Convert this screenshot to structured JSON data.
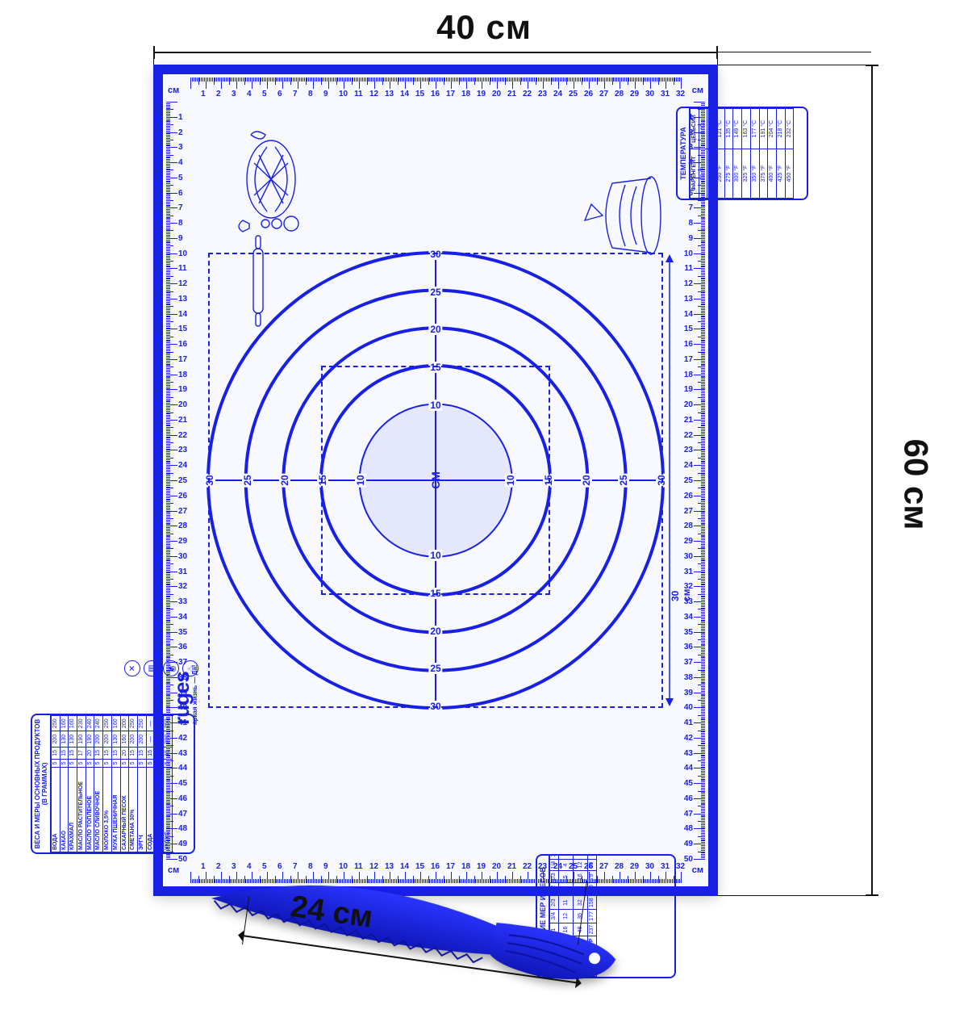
{
  "colors": {
    "blue": "#1920e6",
    "dark": "#111111",
    "bg": "#ffffff",
    "mat_bg": "#f7f9ff"
  },
  "dimensions": {
    "width_label": "40 см",
    "height_label": "60 см",
    "knife_label": "24 см"
  },
  "mat": {
    "ruler_unit": "см",
    "ruler_h_max": 32,
    "ruler_v_max": 50,
    "center_unit": "СМ",
    "ring_diameters_cm": [
      10,
      15,
      20,
      25,
      30
    ],
    "dashed_boxes_cm": [
      15,
      30
    ],
    "dim_30_label": "30 см"
  },
  "logo": {
    "brand": "ruges",
    "reg": "®",
    "tagline": "яркая жизнь — Да!"
  },
  "temperature_box": {
    "title": "ТЕМПЕРАТУРА",
    "headers": [
      "ФАРЕНГЕЙТ",
      "ЦЕЛЬСИЙ"
    ],
    "rows": [
      [
        "32 °F",
        "0 °C"
      ],
      [
        "210 °F",
        "100 °C"
      ],
      [
        "250 °F",
        "121 °C"
      ],
      [
        "275 °F",
        "135 °C"
      ],
      [
        "300 °F",
        "149 °C"
      ],
      [
        "325 °F",
        "163 °C"
      ],
      [
        "350 °F",
        "177 °C"
      ],
      [
        "375 °F",
        "191 °C"
      ],
      [
        "400 °F",
        "204 °C"
      ],
      [
        "425 °F",
        "218 °C"
      ],
      [
        "450 °F",
        "232 °C"
      ]
    ]
  },
  "measures_box": {
    "title": "СРАВНЕНИЕ МЕР И ВЕСОВ",
    "rows": [
      {
        "name": "ЧАШКА",
        "vals": [
          "1",
          "3/4",
          "2/3",
          "1/2",
          "1/3",
          "1/4",
          "1/8",
          "1/16"
        ]
      },
      {
        "name": "СТОЛОВАЯ ЛОЖКА",
        "vals": [
          "16",
          "12",
          "11",
          "8",
          "5",
          "4",
          "2",
          "1"
        ]
      },
      {
        "name": "ЧАЙНАЯ ЛОЖКА",
        "vals": [
          "48",
          "36",
          "32",
          "24",
          "16",
          "12",
          "6",
          "3"
        ]
      },
      {
        "name": "МИЛЛИЛИТР",
        "vals": [
          "237",
          "177",
          "158",
          "118",
          "79",
          "59",
          "30",
          "15"
        ]
      }
    ]
  },
  "weights_box": {
    "title": "ВЕСА И МЕРЫ ОСНОВНЫХ ПРОДУКТОВ (В ГРАММАХ)",
    "rows": [
      {
        "name": "ВОДА",
        "vals": [
          "5",
          "15",
          "200",
          "250"
        ]
      },
      {
        "name": "КАКАО",
        "vals": [
          "5",
          "15",
          "130",
          "160"
        ]
      },
      {
        "name": "КРАХМАЛ",
        "vals": [
          "5",
          "15",
          "130",
          "160"
        ]
      },
      {
        "name": "МАСЛО РАСТИТЕЛЬНОЕ",
        "vals": [
          "5",
          "17",
          "190",
          "230"
        ]
      },
      {
        "name": "МАСЛО ТОПЛЕНОЕ",
        "vals": [
          "5",
          "20",
          "190",
          "240"
        ]
      },
      {
        "name": "МАСЛО СЛИВОЧНОЕ",
        "vals": [
          "5",
          "15",
          "200",
          "240"
        ]
      },
      {
        "name": "МОЛОКО 3,5%",
        "vals": [
          "5",
          "15",
          "200",
          "250"
        ]
      },
      {
        "name": "МУКА ПШЕНИЧНАЯ",
        "vals": [
          "5",
          "15",
          "130",
          "160"
        ]
      },
      {
        "name": "САХАРНЫЙ ПЕСОК",
        "vals": [
          "5",
          "20",
          "160",
          "200"
        ]
      },
      {
        "name": "СМЕТАНА 30%",
        "vals": [
          "5",
          "15",
          "200",
          "250"
        ]
      },
      {
        "name": "ЭРГЧ",
        "vals": [
          "5",
          "15",
          "200",
          "250"
        ]
      },
      {
        "name": "СОДА",
        "vals": [
          "5",
          "15",
          "—",
          "—"
        ]
      },
      {
        "name": "ЛИМОННАЯ КИСЛОТА",
        "vals": [
          "5",
          "15",
          "—",
          "—"
        ]
      },
      {
        "name": "УКСУС",
        "vals": [
          "5",
          "15",
          "200",
          "250"
        ]
      }
    ]
  },
  "safety_icons": [
    "✕",
    "▥",
    "☀",
    "♨"
  ]
}
